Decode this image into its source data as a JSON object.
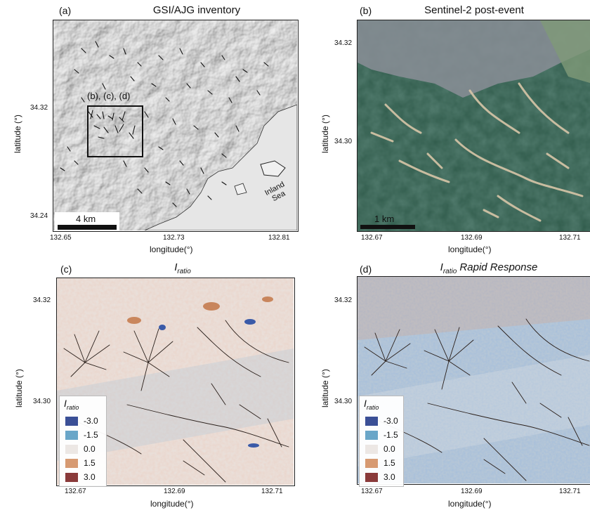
{
  "panels": [
    {
      "id": "a",
      "letter": "(a)",
      "title": "GSI/AJG inventory",
      "x_ticks": [
        "132.65",
        "132.73",
        "132.81"
      ],
      "y_ticks": [
        "34.32",
        "34.24"
      ],
      "xlabel": "longitude(°)",
      "ylabel": "latitude (°)",
      "scalebar": "4 km",
      "inset_label": "(b), (c), (d)",
      "sea_label": "Inland Sea"
    },
    {
      "id": "b",
      "letter": "(b)",
      "title": "Sentinel-2 post-event",
      "x_ticks": [
        "132.67",
        "132.69",
        "132.71"
      ],
      "y_ticks": [
        "34.32",
        "34.30"
      ],
      "xlabel": "longitude(°)",
      "ylabel": "latitude (°)",
      "scalebar": "1 km"
    },
    {
      "id": "c",
      "letter": "(c)",
      "title_main": "I",
      "title_sub": "ratio",
      "title_rest": "",
      "x_ticks": [
        "132.67",
        "132.69",
        "132.71"
      ],
      "y_ticks": [
        "34.32",
        "34.30"
      ],
      "xlabel": "longitude(°)",
      "ylabel": "latitude (°)"
    },
    {
      "id": "d",
      "letter": "(d)",
      "title_main": "I",
      "title_sub": "ratio",
      "title_rest": " Rapid Response",
      "x_ticks": [
        "132.67",
        "132.69",
        "132.71"
      ],
      "y_ticks": [
        "34.32",
        "34.30"
      ],
      "xlabel": "longitude(°)",
      "ylabel": "latitude (°)"
    }
  ],
  "legend": {
    "title_main": "I",
    "title_sub": "ratio",
    "entries": [
      {
        "value": "-3.0",
        "color": "#3a4f96"
      },
      {
        "value": "-1.5",
        "color": "#6aa6c8"
      },
      {
        "value": "0.0",
        "color": "#ece7e4"
      },
      {
        "value": "1.5",
        "color": "#d79a72"
      },
      {
        "value": "3.0",
        "color": "#8a3a3a"
      }
    ]
  },
  "colors": {
    "hillshade": "#d4d4d4",
    "sea": "#e4e4e4",
    "satellite": "#3c6b58",
    "ratio_c_bg": "#e9e1dc",
    "ratio_d_bg": "#a9bfd2"
  }
}
